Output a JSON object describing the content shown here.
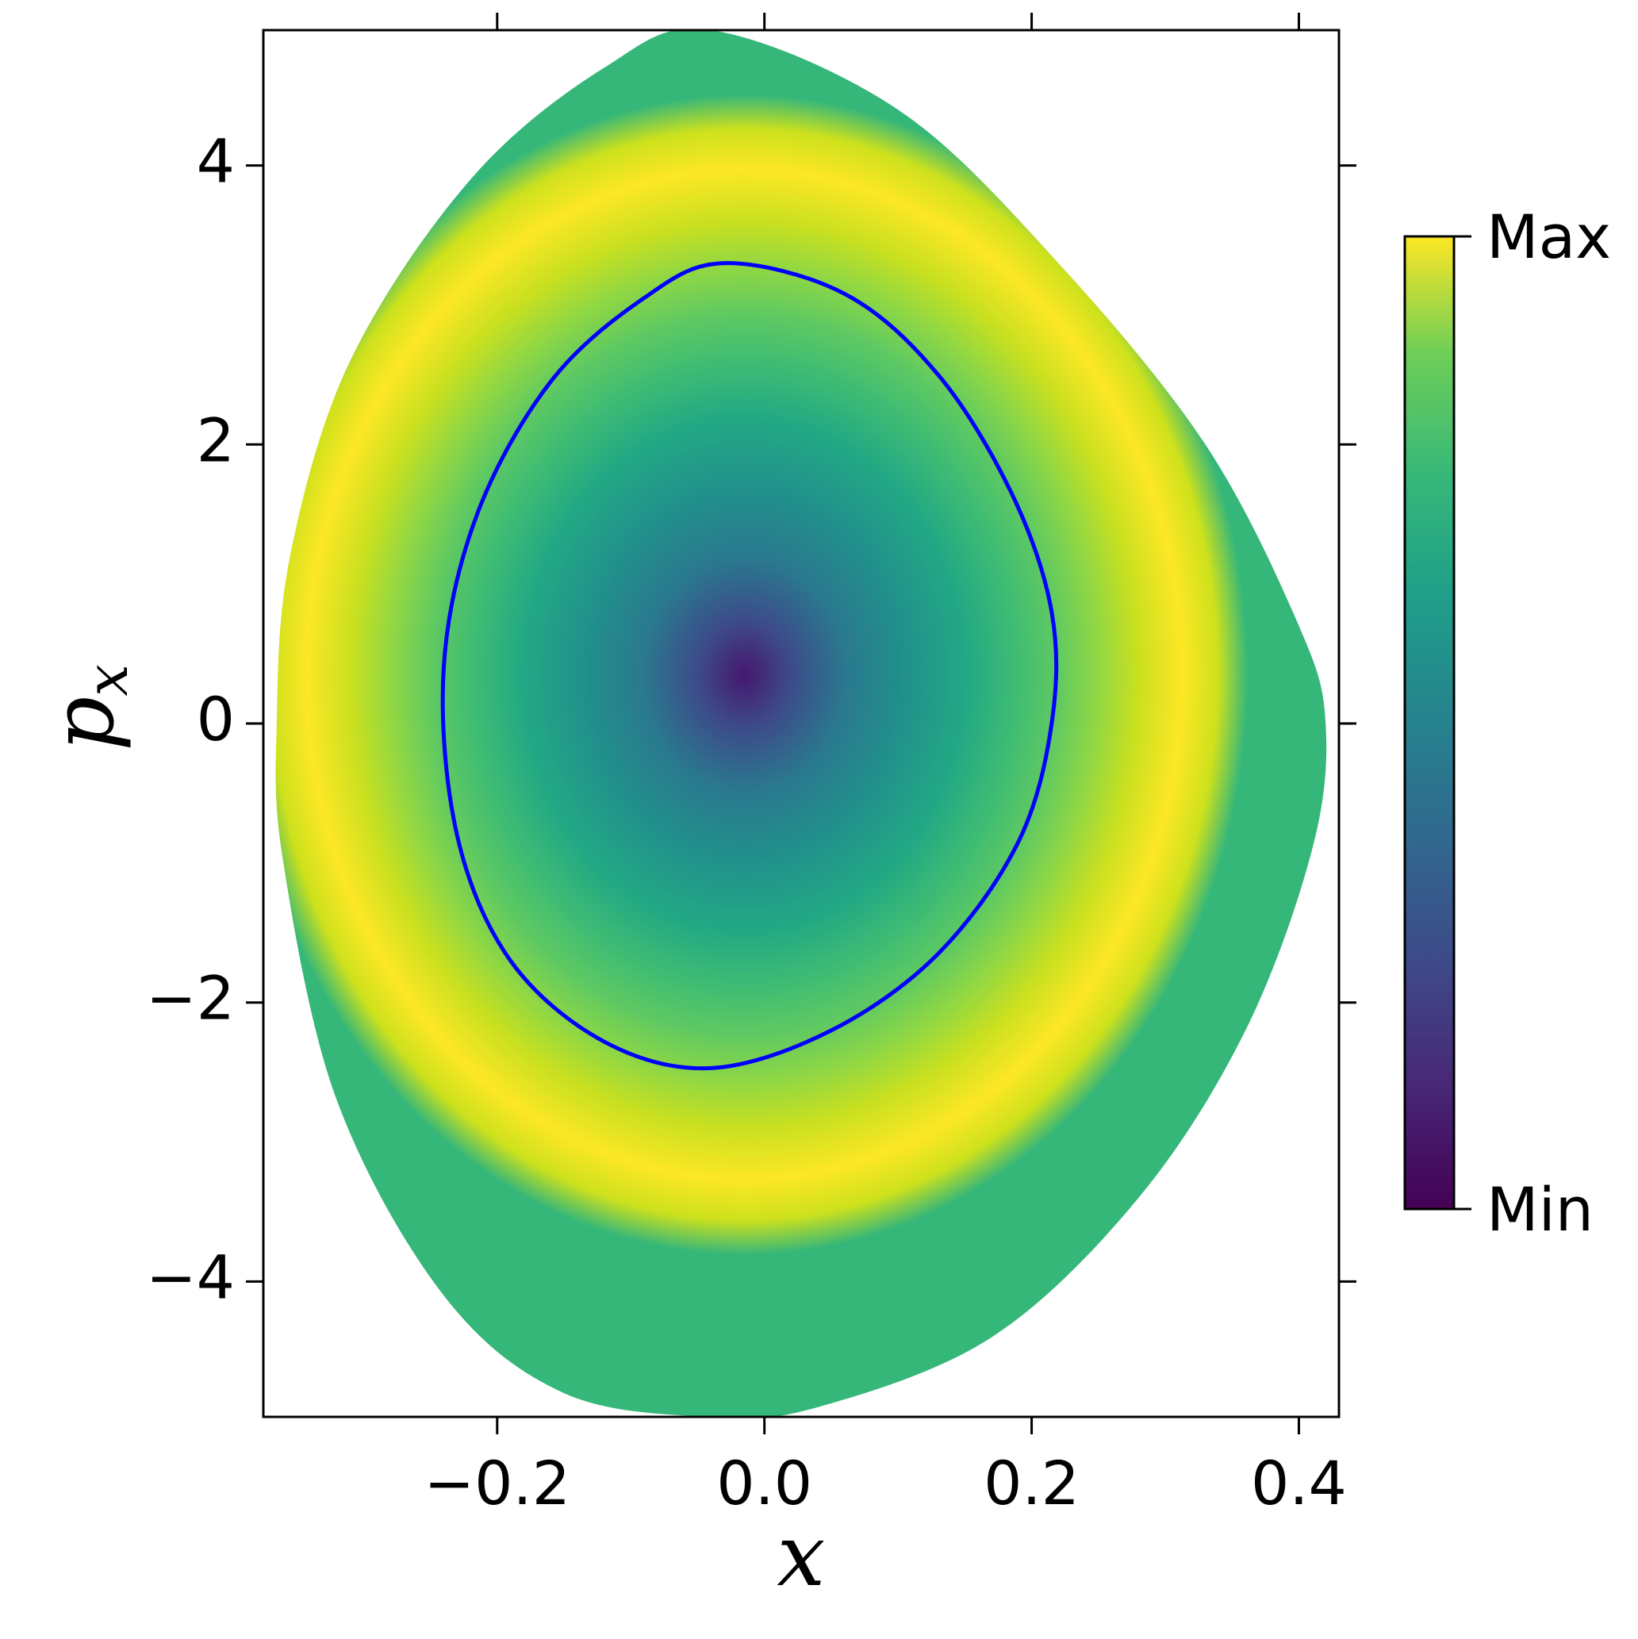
{
  "chart_data": {
    "type": "heatmap",
    "title": "",
    "xlabel": "x",
    "ylabel": "p",
    "ylabel_subscript": "x",
    "xlim": [
      -0.375,
      0.43
    ],
    "ylim": [
      -4.97,
      4.97
    ],
    "xticks": [
      -0.2,
      0.0,
      0.2,
      0.4
    ],
    "xtick_labels": [
      "−0.2",
      "0.0",
      "0.2",
      "0.4"
    ],
    "yticks": [
      -4,
      -2,
      0,
      2,
      4
    ],
    "ytick_labels": [
      "−4",
      "−2",
      "0",
      "2",
      "4"
    ],
    "colormap": "viridis",
    "colorbar": {
      "labels": [
        "Max",
        "Min"
      ]
    },
    "domain_boundary": [
      [
        -0.04,
        4.97
      ],
      [
        0.1,
        4.4
      ],
      [
        0.22,
        3.3
      ],
      [
        0.33,
        2.0
      ],
      [
        0.4,
        0.7
      ],
      [
        0.42,
        0.0
      ],
      [
        0.41,
        -0.9
      ],
      [
        0.36,
        -2.2
      ],
      [
        0.28,
        -3.4
      ],
      [
        0.17,
        -4.4
      ],
      [
        0.04,
        -4.9
      ],
      [
        -0.04,
        -4.97
      ],
      [
        -0.15,
        -4.8
      ],
      [
        -0.24,
        -4.1
      ],
      [
        -0.32,
        -2.7
      ],
      [
        -0.36,
        -1.0
      ],
      [
        -0.365,
        0.0
      ],
      [
        -0.355,
        1.2
      ],
      [
        -0.31,
        2.6
      ],
      [
        -0.22,
        3.9
      ],
      [
        -0.12,
        4.7
      ]
    ],
    "blue_curve": {
      "color": "#0000ff",
      "points": [
        [
          -0.03,
          3.3
        ],
        [
          0.06,
          3.08
        ],
        [
          0.13,
          2.5
        ],
        [
          0.185,
          1.65
        ],
        [
          0.215,
          0.8
        ],
        [
          0.215,
          0.0
        ],
        [
          0.19,
          -0.85
        ],
        [
          0.13,
          -1.65
        ],
        [
          0.05,
          -2.2
        ],
        [
          -0.04,
          -2.47
        ],
        [
          -0.12,
          -2.28
        ],
        [
          -0.19,
          -1.7
        ],
        [
          -0.23,
          -0.8
        ],
        [
          -0.24,
          0.4
        ],
        [
          -0.215,
          1.5
        ],
        [
          -0.16,
          2.45
        ],
        [
          -0.09,
          3.05
        ]
      ]
    },
    "minimum_center": [
      -0.015,
      0.35
    ],
    "grid": false
  }
}
